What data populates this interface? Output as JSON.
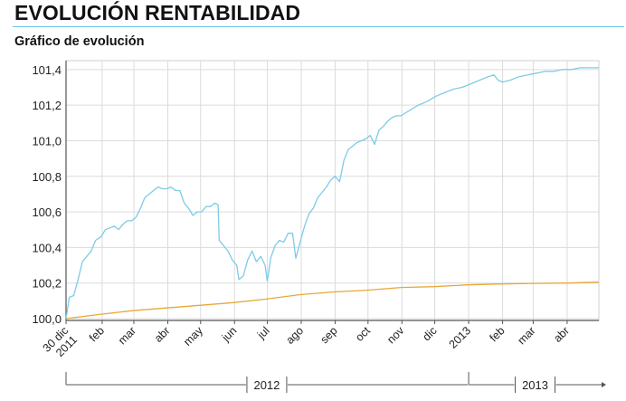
{
  "header": {
    "title": "EVOLUCIÓN RENTABILIDAD",
    "subtitle": "Gráfico de evolución"
  },
  "colors": {
    "series_blue": "#7ecbe6",
    "series_orange": "#e8a838",
    "grid": "#dcdcdc",
    "axis": "#555555",
    "header_rule": "#6bc6e6"
  },
  "chart_data": {
    "type": "line",
    "title": "Gráfico de evolución",
    "xlabel": "",
    "ylabel": "",
    "grid": true,
    "legend": "none",
    "x_range": [
      "2011-12-30",
      "2013-04-30"
    ],
    "ylim": [
      99.99,
      101.45
    ],
    "y_ticks": [
      100.0,
      100.2,
      100.4,
      100.6,
      100.8,
      101.0,
      101.2,
      101.4
    ],
    "y_tick_labels": [
      "100,0",
      "100,2",
      "100,4",
      "100,6",
      "100,8",
      "101,0",
      "101,2",
      "101,4"
    ],
    "x_ticks": [
      {
        "date": "2011-12-30",
        "label": [
          "30 dic",
          "2011"
        ]
      },
      {
        "date": "2012-02-01",
        "label": [
          "feb"
        ]
      },
      {
        "date": "2012-03-01",
        "label": [
          "mar"
        ]
      },
      {
        "date": "2012-04-01",
        "label": [
          "abr"
        ]
      },
      {
        "date": "2012-05-01",
        "label": [
          "may"
        ]
      },
      {
        "date": "2012-06-01",
        "label": [
          "jun"
        ]
      },
      {
        "date": "2012-07-01",
        "label": [
          "jul"
        ]
      },
      {
        "date": "2012-08-01",
        "label": [
          "ago"
        ]
      },
      {
        "date": "2012-09-01",
        "label": [
          "sep"
        ]
      },
      {
        "date": "2012-10-01",
        "label": [
          "oct"
        ]
      },
      {
        "date": "2012-11-01",
        "label": [
          "nov"
        ]
      },
      {
        "date": "2012-12-01",
        "label": [
          "dic"
        ]
      },
      {
        "date": "2013-01-01",
        "label": [
          "2013"
        ]
      },
      {
        "date": "2013-02-01",
        "label": [
          "feb"
        ]
      },
      {
        "date": "2013-03-01",
        "label": [
          "mar"
        ]
      },
      {
        "date": "2013-04-01",
        "label": [
          "abr"
        ]
      }
    ],
    "year_ranges": [
      {
        "label": "2012",
        "start": "2011-12-30",
        "end": "2012-12-31"
      },
      {
        "label": "2013",
        "start": "2013-01-01",
        "end": "2013-04-30"
      }
    ],
    "series": [
      {
        "color": "#7ecbe6",
        "points": [
          [
            "2011-12-30",
            100.0
          ],
          [
            "2012-01-02",
            100.12
          ],
          [
            "2012-01-06",
            100.13
          ],
          [
            "2012-01-10",
            100.22
          ],
          [
            "2012-01-14",
            100.32
          ],
          [
            "2012-01-18",
            100.35
          ],
          [
            "2012-01-22",
            100.38
          ],
          [
            "2012-01-26",
            100.44
          ],
          [
            "2012-01-31",
            100.46
          ],
          [
            "2012-02-04",
            100.5
          ],
          [
            "2012-02-08",
            100.51
          ],
          [
            "2012-02-12",
            100.52
          ],
          [
            "2012-02-16",
            100.5
          ],
          [
            "2012-02-20",
            100.53
          ],
          [
            "2012-02-24",
            100.55
          ],
          [
            "2012-02-28",
            100.55
          ],
          [
            "2012-03-03",
            100.57
          ],
          [
            "2012-03-07",
            100.62
          ],
          [
            "2012-03-11",
            100.68
          ],
          [
            "2012-03-15",
            100.7
          ],
          [
            "2012-03-19",
            100.72
          ],
          [
            "2012-03-23",
            100.74
          ],
          [
            "2012-03-27",
            100.73
          ],
          [
            "2012-03-31",
            100.73
          ],
          [
            "2012-04-04",
            100.74
          ],
          [
            "2012-04-08",
            100.72
          ],
          [
            "2012-04-12",
            100.72
          ],
          [
            "2012-04-16",
            100.65
          ],
          [
            "2012-04-20",
            100.62
          ],
          [
            "2012-04-24",
            100.58
          ],
          [
            "2012-04-28",
            100.6
          ],
          [
            "2012-05-02",
            100.6
          ],
          [
            "2012-05-06",
            100.63
          ],
          [
            "2012-05-10",
            100.63
          ],
          [
            "2012-05-14",
            100.65
          ],
          [
            "2012-05-17",
            100.64
          ],
          [
            "2012-05-18",
            100.44
          ],
          [
            "2012-05-22",
            100.41
          ],
          [
            "2012-05-26",
            100.38
          ],
          [
            "2012-05-30",
            100.33
          ],
          [
            "2012-06-03",
            100.3
          ],
          [
            "2012-06-05",
            100.22
          ],
          [
            "2012-06-09",
            100.24
          ],
          [
            "2012-06-13",
            100.33
          ],
          [
            "2012-06-17",
            100.38
          ],
          [
            "2012-06-21",
            100.32
          ],
          [
            "2012-06-25",
            100.35
          ],
          [
            "2012-06-29",
            100.3
          ],
          [
            "2012-07-01",
            100.21
          ],
          [
            "2012-07-04",
            100.34
          ],
          [
            "2012-07-08",
            100.41
          ],
          [
            "2012-07-12",
            100.44
          ],
          [
            "2012-07-16",
            100.43
          ],
          [
            "2012-07-20",
            100.48
          ],
          [
            "2012-07-24",
            100.48
          ],
          [
            "2012-07-27",
            100.34
          ],
          [
            "2012-07-31",
            100.43
          ],
          [
            "2012-08-04",
            100.52
          ],
          [
            "2012-08-08",
            100.59
          ],
          [
            "2012-08-12",
            100.62
          ],
          [
            "2012-08-16",
            100.68
          ],
          [
            "2012-08-20",
            100.71
          ],
          [
            "2012-08-24",
            100.74
          ],
          [
            "2012-08-28",
            100.78
          ],
          [
            "2012-09-01",
            100.8
          ],
          [
            "2012-09-05",
            100.77
          ],
          [
            "2012-09-09",
            100.89
          ],
          [
            "2012-09-13",
            100.95
          ],
          [
            "2012-09-17",
            100.97
          ],
          [
            "2012-09-21",
            100.99
          ],
          [
            "2012-09-25",
            101.0
          ],
          [
            "2012-09-29",
            101.01
          ],
          [
            "2012-10-03",
            101.03
          ],
          [
            "2012-10-07",
            100.98
          ],
          [
            "2012-10-11",
            101.06
          ],
          [
            "2012-10-15",
            101.08
          ],
          [
            "2012-10-19",
            101.11
          ],
          [
            "2012-10-23",
            101.13
          ],
          [
            "2012-10-27",
            101.14
          ],
          [
            "2012-10-31",
            101.14
          ],
          [
            "2012-11-08",
            101.17
          ],
          [
            "2012-11-16",
            101.2
          ],
          [
            "2012-11-24",
            101.22
          ],
          [
            "2012-12-02",
            101.25
          ],
          [
            "2012-12-10",
            101.27
          ],
          [
            "2012-12-18",
            101.29
          ],
          [
            "2012-12-26",
            101.3
          ],
          [
            "2013-01-03",
            101.32
          ],
          [
            "2013-01-11",
            101.34
          ],
          [
            "2013-01-19",
            101.36
          ],
          [
            "2013-01-24",
            101.37
          ],
          [
            "2013-01-28",
            101.34
          ],
          [
            "2013-02-01",
            101.33
          ],
          [
            "2013-02-08",
            101.34
          ],
          [
            "2013-02-16",
            101.36
          ],
          [
            "2013-02-24",
            101.37
          ],
          [
            "2013-03-04",
            101.38
          ],
          [
            "2013-03-12",
            101.39
          ],
          [
            "2013-03-20",
            101.39
          ],
          [
            "2013-03-28",
            101.4
          ],
          [
            "2013-04-05",
            101.4
          ],
          [
            "2013-04-13",
            101.41
          ],
          [
            "2013-04-21",
            101.41
          ],
          [
            "2013-04-30",
            101.41
          ]
        ]
      },
      {
        "color": "#e8a838",
        "points": [
          [
            "2011-12-30",
            100.0
          ],
          [
            "2012-01-31",
            100.025
          ],
          [
            "2012-02-29",
            100.045
          ],
          [
            "2012-03-31",
            100.06
          ],
          [
            "2012-04-30",
            100.075
          ],
          [
            "2012-05-31",
            100.09
          ],
          [
            "2012-06-30",
            100.11
          ],
          [
            "2012-07-31",
            100.135
          ],
          [
            "2012-08-31",
            100.15
          ],
          [
            "2012-09-30",
            100.16
          ],
          [
            "2012-10-31",
            100.175
          ],
          [
            "2012-11-30",
            100.18
          ],
          [
            "2012-12-31",
            100.19
          ],
          [
            "2013-01-31",
            100.195
          ],
          [
            "2013-02-28",
            100.198
          ],
          [
            "2013-03-31",
            100.2
          ],
          [
            "2013-04-30",
            100.205
          ]
        ]
      }
    ]
  }
}
